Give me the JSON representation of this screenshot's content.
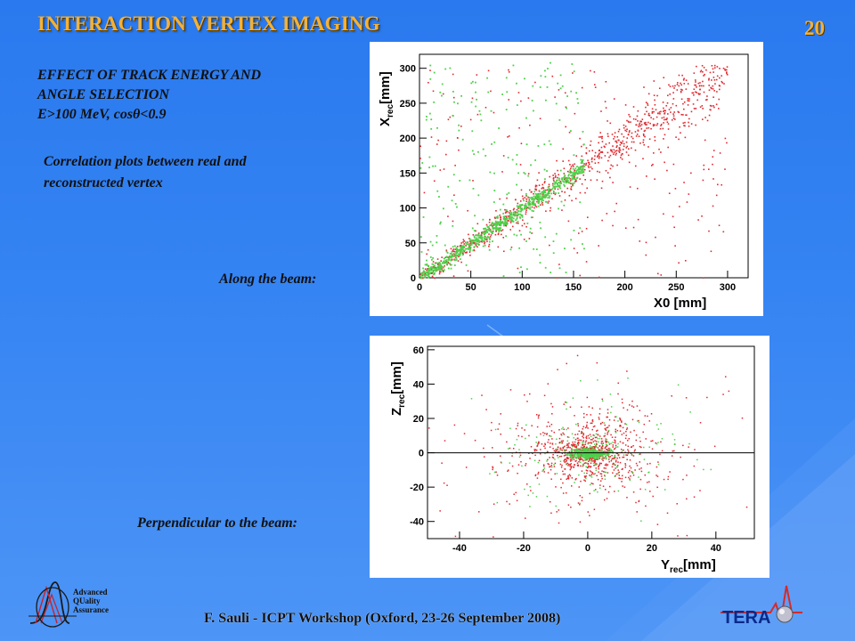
{
  "header": {
    "title": "INTERACTION VERTEX IMAGING",
    "page_number": "20"
  },
  "subtitle_lines": [
    "EFFECT OF TRACK ENERGY AND",
    "ANGLE SELECTION",
    "E>100 MeV, cosθ<0.9"
  ],
  "description_lines": [
    "Correlation plots between real and",
    "reconstructed vertex"
  ],
  "labels": {
    "along": "Along the beam:",
    "perpendicular": "Perpendicular to the beam:"
  },
  "footer": "F. Sauli - ICPT Workshop (Oxford, 23-26 September 2008)",
  "logos": {
    "aqa_line1": "Advanced",
    "aqa_line2": "QUality",
    "aqa_line3": "Assurance",
    "tera": "TERA"
  },
  "colors": {
    "title": "#f2b13a",
    "background": "#3584f3",
    "red_points": "#e0292f",
    "green_points": "#4fd14b"
  },
  "chart_data": [
    {
      "type": "scatter",
      "xlabel_main": "X0",
      "xlabel_unit": "[mm]",
      "ylabel_main": "X",
      "ylabel_sub": "rec",
      "ylabel_unit": "[mm]",
      "xlim": [
        0,
        320
      ],
      "ylim": [
        0,
        320
      ],
      "xticks": [
        0,
        50,
        100,
        150,
        200,
        250,
        300
      ],
      "yticks": [
        0,
        50,
        100,
        150,
        200,
        250,
        300
      ],
      "series": [
        {
          "color": "red",
          "relation": "x_rec ≈ x0",
          "x_range": [
            0,
            300
          ],
          "spread_mm": 12
        },
        {
          "color": "green",
          "relation": "x_rec ≈ x0",
          "x_range": [
            0,
            160
          ],
          "spread_mm": 5
        }
      ]
    },
    {
      "type": "scatter",
      "xlabel_main": "Y",
      "xlabel_sub": "rec",
      "xlabel_unit": "[mm]",
      "ylabel_main": "Z",
      "ylabel_sub": "rec",
      "ylabel_unit": "[mm]",
      "xlim": [
        -50,
        52
      ],
      "ylim": [
        -50,
        62
      ],
      "xticks": [
        -40,
        -20,
        0,
        20,
        40
      ],
      "yticks": [
        -40,
        -20,
        0,
        20,
        40,
        60
      ],
      "reference_line_y": 0,
      "series": [
        {
          "color": "red",
          "center": [
            0,
            0
          ],
          "spread_mm": 12
        },
        {
          "color": "green",
          "center": [
            0,
            0
          ],
          "spread_mm": 2
        }
      ]
    }
  ]
}
